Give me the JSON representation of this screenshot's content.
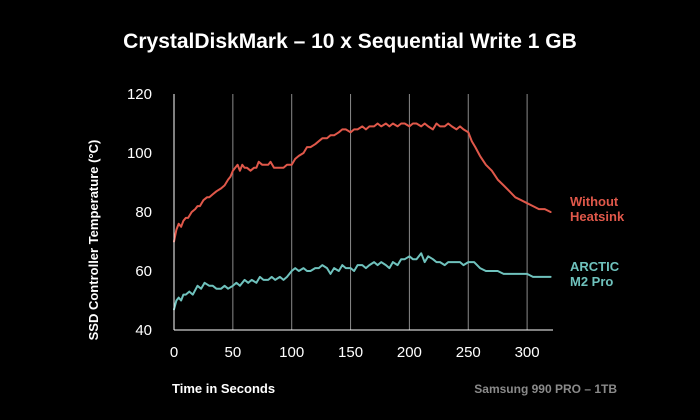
{
  "chart_data": {
    "type": "line",
    "title": "CrystalDiskMark – 10 x Sequential Write 1 GB",
    "xlabel": "Time in Seconds",
    "ylabel": "SSD Controller Temperature (°C)",
    "xlim": [
      0,
      322
    ],
    "ylim": [
      40,
      120
    ],
    "x_ticks": [
      0,
      50,
      100,
      150,
      200,
      250,
      300
    ],
    "y_ticks": [
      40,
      60,
      80,
      100,
      120
    ],
    "grid": "vertical",
    "legend_placement": "right",
    "footer": "Samsung 990 PRO – 1TB",
    "colors": {
      "background": "#000000",
      "grid": "#8a8a8a",
      "axis": "#ffffff",
      "footer": "#8a8a8a"
    },
    "series": [
      {
        "name": "Without Heatsink",
        "legend_lines": [
          "Without",
          "Heatsink"
        ],
        "color": "#e0584a",
        "x": [
          0,
          2,
          4,
          6,
          8,
          10,
          12,
          15,
          18,
          20,
          22,
          25,
          28,
          30,
          33,
          36,
          40,
          43,
          46,
          48,
          50,
          52,
          54,
          56,
          58,
          60,
          62,
          65,
          68,
          70,
          72,
          75,
          78,
          80,
          82,
          85,
          88,
          90,
          93,
          96,
          100,
          103,
          106,
          110,
          113,
          116,
          120,
          123,
          126,
          130,
          133,
          136,
          140,
          143,
          146,
          150,
          153,
          156,
          160,
          163,
          166,
          170,
          173,
          176,
          180,
          183,
          186,
          190,
          193,
          196,
          200,
          203,
          206,
          210,
          213,
          216,
          220,
          223,
          226,
          230,
          233,
          236,
          240,
          243,
          246,
          250,
          253,
          256,
          260,
          265,
          270,
          275,
          280,
          285,
          290,
          295,
          300,
          305,
          310,
          315,
          320
        ],
        "y": [
          70,
          74,
          76,
          75,
          77,
          78,
          78,
          80,
          81,
          82,
          82,
          84,
          85,
          85,
          86,
          87,
          88,
          89,
          91,
          92,
          94,
          95,
          96,
          94,
          96,
          95,
          95,
          94,
          95,
          95,
          97,
          96,
          96,
          96,
          97,
          95,
          95,
          95,
          95,
          96,
          96,
          98,
          99,
          100,
          102,
          102,
          103,
          104,
          105,
          105,
          106,
          106,
          107,
          108,
          108,
          107,
          108,
          108,
          109,
          108,
          109,
          109,
          110,
          109,
          110,
          109,
          110,
          109,
          110,
          110,
          109,
          110,
          110,
          109,
          110,
          109,
          108,
          110,
          109,
          109,
          110,
          109,
          108,
          109,
          108,
          107,
          104,
          102,
          99,
          96,
          94,
          91,
          89,
          87,
          85,
          84,
          83,
          82,
          81,
          81,
          80
        ]
      },
      {
        "name": "ARCTIC M2 Pro",
        "legend_lines": [
          "ARCTIC",
          "M2 Pro"
        ],
        "color": "#6fc2bd",
        "x": [
          0,
          2,
          4,
          6,
          8,
          10,
          13,
          16,
          20,
          23,
          26,
          30,
          33,
          36,
          40,
          43,
          46,
          50,
          53,
          56,
          60,
          63,
          66,
          70,
          73,
          76,
          80,
          83,
          86,
          90,
          93,
          96,
          100,
          103,
          106,
          110,
          113,
          116,
          120,
          123,
          126,
          130,
          133,
          136,
          140,
          143,
          146,
          150,
          153,
          156,
          160,
          163,
          166,
          170,
          173,
          176,
          180,
          183,
          186,
          190,
          193,
          196,
          200,
          203,
          206,
          210,
          213,
          216,
          220,
          223,
          226,
          230,
          233,
          236,
          240,
          243,
          246,
          250,
          255,
          260,
          265,
          270,
          275,
          280,
          285,
          290,
          295,
          300,
          305,
          310,
          315,
          320
        ],
        "y": [
          47,
          50,
          51,
          50,
          52,
          52,
          53,
          52,
          55,
          54,
          56,
          55,
          55,
          54,
          54,
          55,
          54,
          55,
          56,
          55,
          57,
          56,
          57,
          56,
          58,
          57,
          57,
          58,
          57,
          58,
          57,
          58,
          60,
          61,
          60,
          61,
          60,
          60,
          61,
          61,
          62,
          61,
          59,
          61,
          60,
          62,
          61,
          61,
          60,
          62,
          62,
          61,
          62,
          63,
          62,
          63,
          62,
          61,
          63,
          62,
          64,
          64,
          65,
          64,
          64,
          66,
          63,
          65,
          64,
          63,
          63,
          62,
          63,
          63,
          63,
          63,
          62,
          63,
          63,
          61,
          60,
          60,
          60,
          59,
          59,
          59,
          59,
          59,
          58,
          58,
          58,
          58
        ]
      }
    ]
  }
}
